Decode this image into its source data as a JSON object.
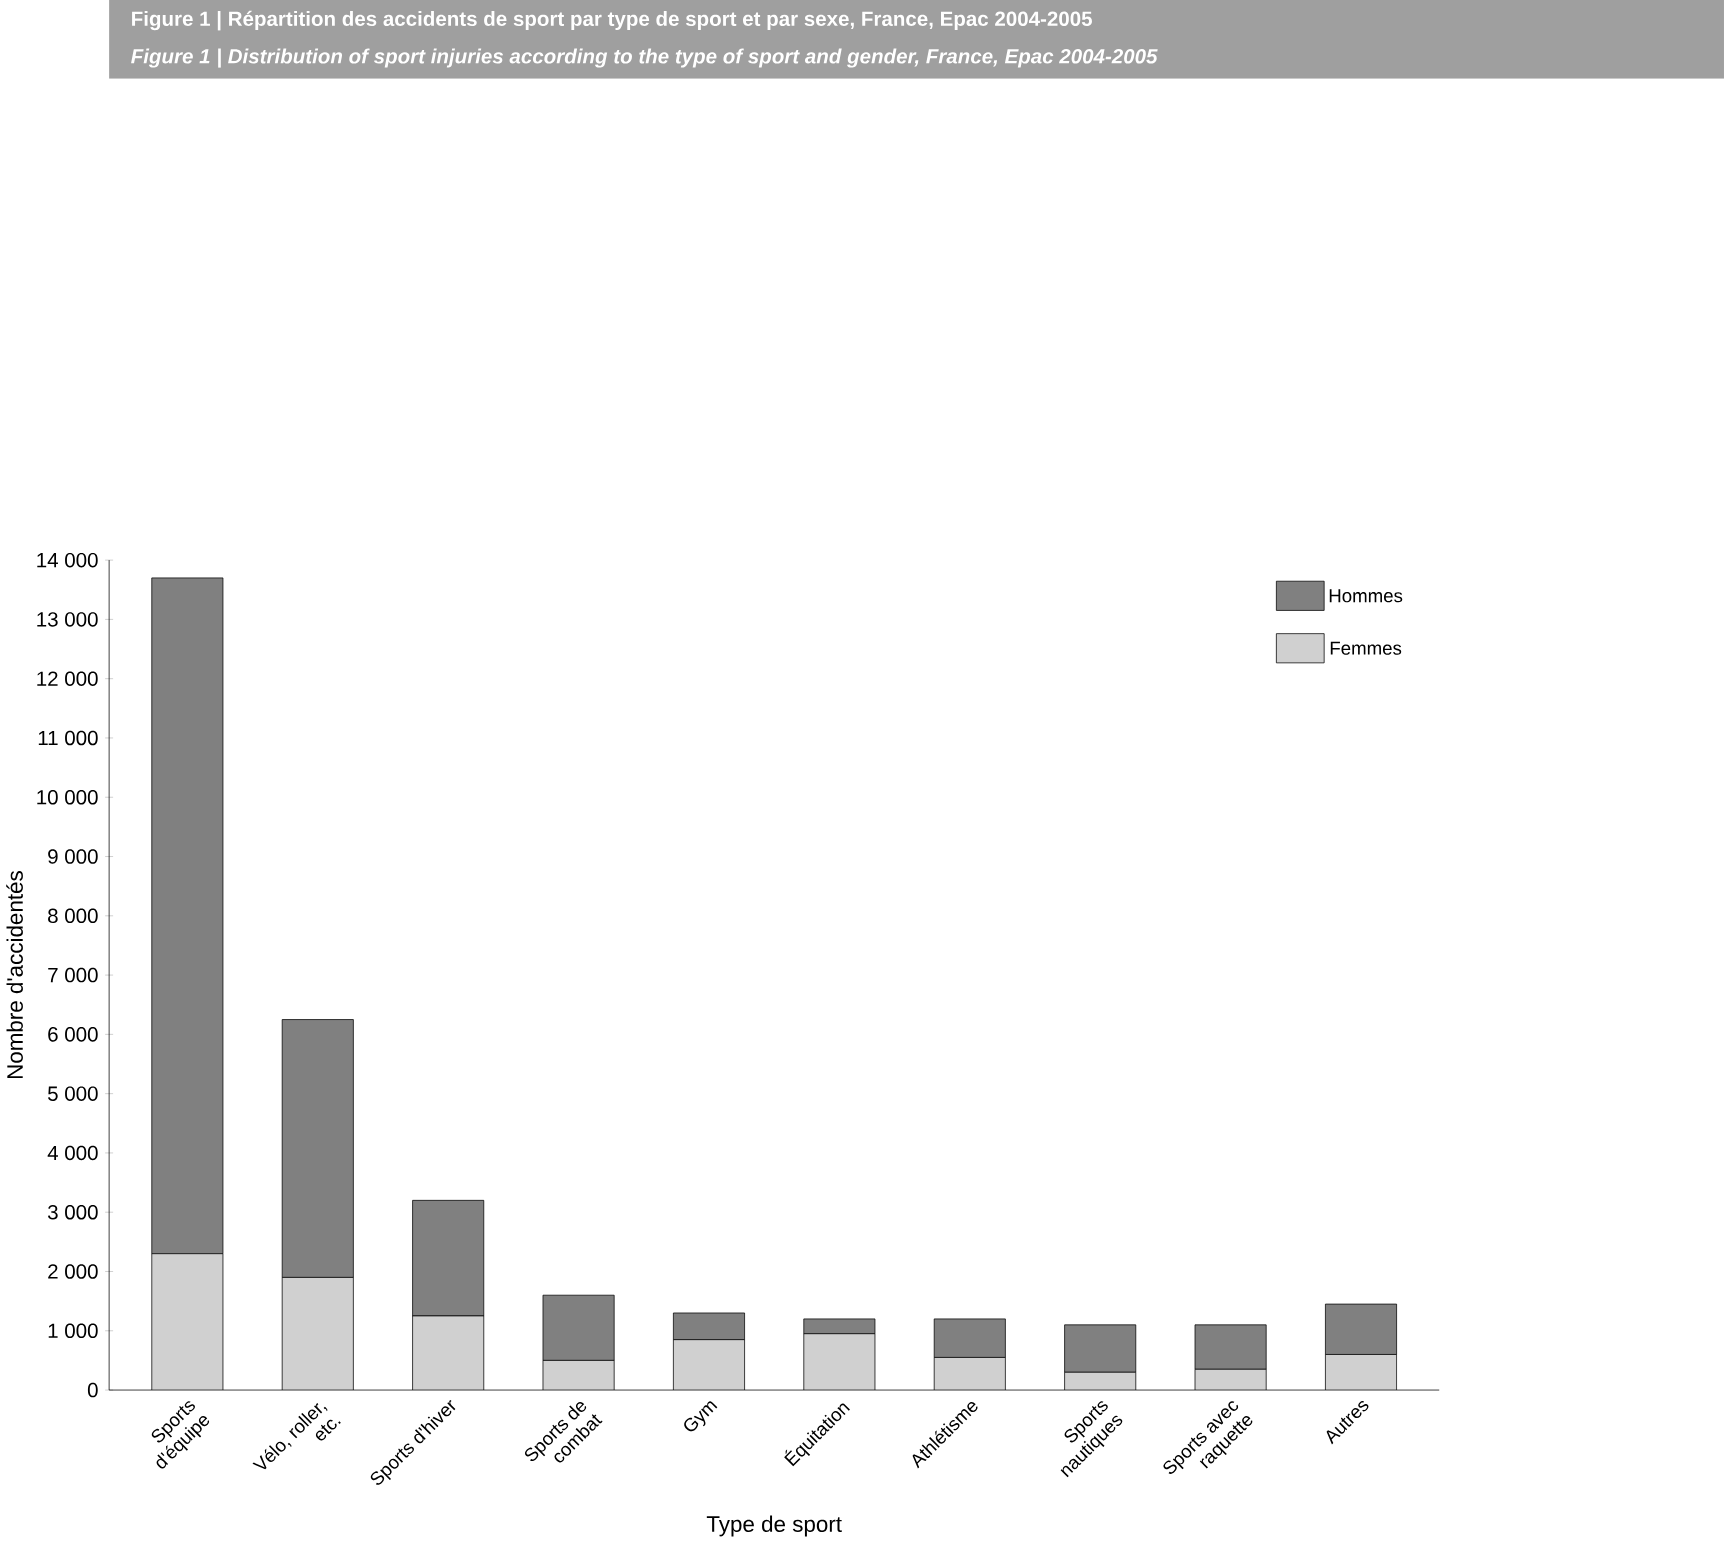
{
  "chart_data": {
    "type": "bar",
    "stacked": true,
    "title": "Figure 1 | Répartition des accidents de sport par type de sport et par sexe, France, Epac 2004-2005",
    "subtitle": "Figure 1 | Distribution of sport injuries according to the type of sport and gender, France, Epac 2004-2005",
    "xlabel": "Type de sport",
    "ylabel": "Nombre d'accidentés",
    "categories": [
      "Sports d'équipe",
      "Vélo, roller, etc.",
      "Sports d'hiver",
      "Sports de combat",
      "Gym",
      "Équitation",
      "Athlétisme",
      "Sports nautiques",
      "Sports avec raquette",
      "Autres"
    ],
    "series": [
      {
        "name": "Femmes",
        "color": "#d0d0d0",
        "values": [
          2300,
          1900,
          1250,
          500,
          850,
          950,
          550,
          300,
          350,
          600
        ]
      },
      {
        "name": "Hommes",
        "color": "#808080",
        "values": [
          11400,
          4350,
          1950,
          1100,
          450,
          250,
          650,
          800,
          750,
          850
        ]
      }
    ],
    "ylim": [
      0,
      14000
    ],
    "yticks": [
      0,
      {
        "value": 1000,
        "label": "1 000"
      },
      {
        "value": 2000,
        "label": "2 000"
      },
      {
        "value": 3000,
        "label": "3 000"
      },
      {
        "value": 4000,
        "label": "4 000"
      },
      {
        "value": 5000,
        "label": "5 000"
      },
      {
        "value": 6000,
        "label": "6 000"
      },
      {
        "value": 7000,
        "label": "7 000"
      },
      {
        "value": 8000,
        "label": "8 000"
      },
      {
        "value": 9000,
        "label": "9 000"
      },
      {
        "value": 10000,
        "label": "10 000"
      },
      {
        "value": 11000,
        "label": "11 000"
      },
      {
        "value": 12000,
        "label": "12 000"
      },
      {
        "value": 13000,
        "label": "13 000"
      },
      {
        "value": 14000,
        "label": "14 000"
      }
    ],
    "legend": "top right",
    "grid": false
  }
}
